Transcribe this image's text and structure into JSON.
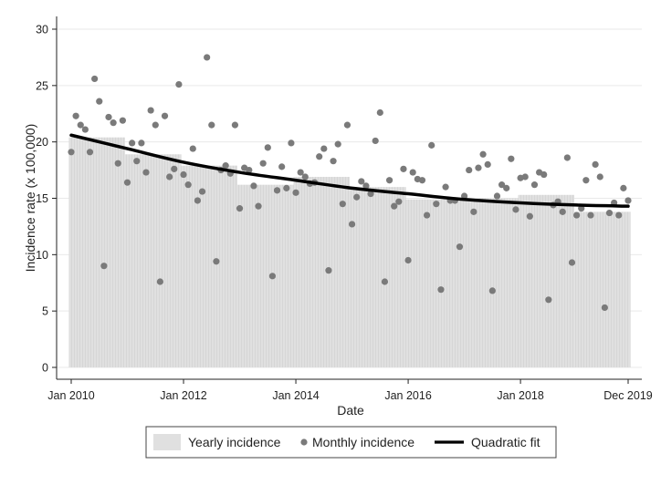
{
  "chart_data": {
    "type": "bar",
    "xlabel": "Date",
    "ylabel": "Incidence rate (x 100,000)",
    "xlim": [
      "2010-01",
      "2019-12"
    ],
    "ylim": [
      0,
      30
    ],
    "yticks": [
      0,
      5,
      10,
      15,
      20,
      25,
      30
    ],
    "xticks": [
      {
        "date": "2010-01",
        "label": "Jan 2010"
      },
      {
        "date": "2012-01",
        "label": "Jan 2012"
      },
      {
        "date": "2014-01",
        "label": "Jan 2014"
      },
      {
        "date": "2016-01",
        "label": "Jan 2016"
      },
      {
        "date": "2018-01",
        "label": "Jan 2018"
      },
      {
        "date": "2019-12",
        "label": "Dec 2019"
      }
    ],
    "grid": "horizontal",
    "legend_position": "bottom",
    "colors": {
      "yearly": "#e0e0e0",
      "yearly_stripe": "#c8c8c8",
      "monthly": "#7a7a7a",
      "fit": "#000000"
    },
    "series": [
      {
        "name": "Yearly incidence",
        "type": "bar",
        "categories": [
          "2010",
          "2011",
          "2012",
          "2013",
          "2014",
          "2015",
          "2016",
          "2017",
          "2018",
          "2019"
        ],
        "values": [
          20.4,
          18.9,
          17.9,
          16.2,
          16.9,
          16.0,
          14.9,
          15.0,
          15.3,
          13.8
        ]
      },
      {
        "name": "Monthly incidence",
        "type": "scatter",
        "x": [
          "2010-01",
          "2010-02",
          "2010-03",
          "2010-04",
          "2010-05",
          "2010-06",
          "2010-07",
          "2010-08",
          "2010-09",
          "2010-10",
          "2010-11",
          "2010-12",
          "2011-01",
          "2011-02",
          "2011-03",
          "2011-04",
          "2011-05",
          "2011-06",
          "2011-07",
          "2011-08",
          "2011-09",
          "2011-10",
          "2011-11",
          "2011-12",
          "2012-01",
          "2012-02",
          "2012-03",
          "2012-04",
          "2012-05",
          "2012-06",
          "2012-07",
          "2012-08",
          "2012-09",
          "2012-10",
          "2012-11",
          "2012-12",
          "2013-01",
          "2013-02",
          "2013-03",
          "2013-04",
          "2013-05",
          "2013-06",
          "2013-07",
          "2013-08",
          "2013-09",
          "2013-10",
          "2013-11",
          "2013-12",
          "2014-01",
          "2014-02",
          "2014-03",
          "2014-04",
          "2014-05",
          "2014-06",
          "2014-07",
          "2014-08",
          "2014-09",
          "2014-10",
          "2014-11",
          "2014-12",
          "2015-01",
          "2015-02",
          "2015-03",
          "2015-04",
          "2015-05",
          "2015-06",
          "2015-07",
          "2015-08",
          "2015-09",
          "2015-10",
          "2015-11",
          "2015-12",
          "2016-01",
          "2016-02",
          "2016-03",
          "2016-04",
          "2016-05",
          "2016-06",
          "2016-07",
          "2016-08",
          "2016-09",
          "2016-10",
          "2016-11",
          "2016-12",
          "2017-01",
          "2017-02",
          "2017-03",
          "2017-04",
          "2017-05",
          "2017-06",
          "2017-07",
          "2017-08",
          "2017-09",
          "2017-10",
          "2017-11",
          "2017-12",
          "2018-01",
          "2018-02",
          "2018-03",
          "2018-04",
          "2018-05",
          "2018-06",
          "2018-07",
          "2018-08",
          "2018-09",
          "2018-10",
          "2018-11",
          "2018-12",
          "2019-01",
          "2019-02",
          "2019-03",
          "2019-04",
          "2019-05",
          "2019-06",
          "2019-07",
          "2019-08",
          "2019-09",
          "2019-10",
          "2019-11",
          "2019-12"
        ],
        "values": [
          19.1,
          22.3,
          21.5,
          21.1,
          19.1,
          25.6,
          23.6,
          9.0,
          22.2,
          21.7,
          18.1,
          21.9,
          16.4,
          19.9,
          18.3,
          19.9,
          17.3,
          22.8,
          21.5,
          7.6,
          22.3,
          16.9,
          17.6,
          25.1,
          17.1,
          16.2,
          19.4,
          14.8,
          15.6,
          27.5,
          21.5,
          9.4,
          17.5,
          17.9,
          17.2,
          21.5,
          14.1,
          17.7,
          17.5,
          16.1,
          14.3,
          18.1,
          19.5,
          8.1,
          15.7,
          17.8,
          15.9,
          19.9,
          15.5,
          17.3,
          16.9,
          16.3,
          16.4,
          18.7,
          19.4,
          8.6,
          18.3,
          19.8,
          14.5,
          21.5,
          12.7,
          15.1,
          16.5,
          16.1,
          15.4,
          20.1,
          22.6,
          7.6,
          16.6,
          14.3,
          14.7,
          17.6,
          9.5,
          17.3,
          16.7,
          16.6,
          13.5,
          19.7,
          14.5,
          6.9,
          16.0,
          14.8,
          14.8,
          10.7,
          15.2,
          17.5,
          13.8,
          17.7,
          18.9,
          18.0,
          6.8,
          15.2,
          16.2,
          15.9,
          18.5,
          14.0,
          16.8,
          16.9,
          13.4,
          16.2,
          17.3,
          17.1,
          6.0,
          14.4,
          14.7,
          13.8,
          18.6,
          9.3,
          13.5,
          14.1,
          16.6,
          13.5,
          18.0,
          16.9,
          5.3,
          13.7,
          14.6,
          13.5,
          15.9,
          14.8
        ]
      },
      {
        "name": "Quadratic fit",
        "type": "line",
        "x": [
          "2010-01",
          "2011-01",
          "2012-01",
          "2013-01",
          "2014-01",
          "2015-01",
          "2016-01",
          "2017-01",
          "2018-01",
          "2019-01",
          "2019-12"
        ],
        "values": [
          20.6,
          19.4,
          18.2,
          17.3,
          16.6,
          15.9,
          15.4,
          14.9,
          14.6,
          14.4,
          14.3
        ]
      }
    ]
  }
}
